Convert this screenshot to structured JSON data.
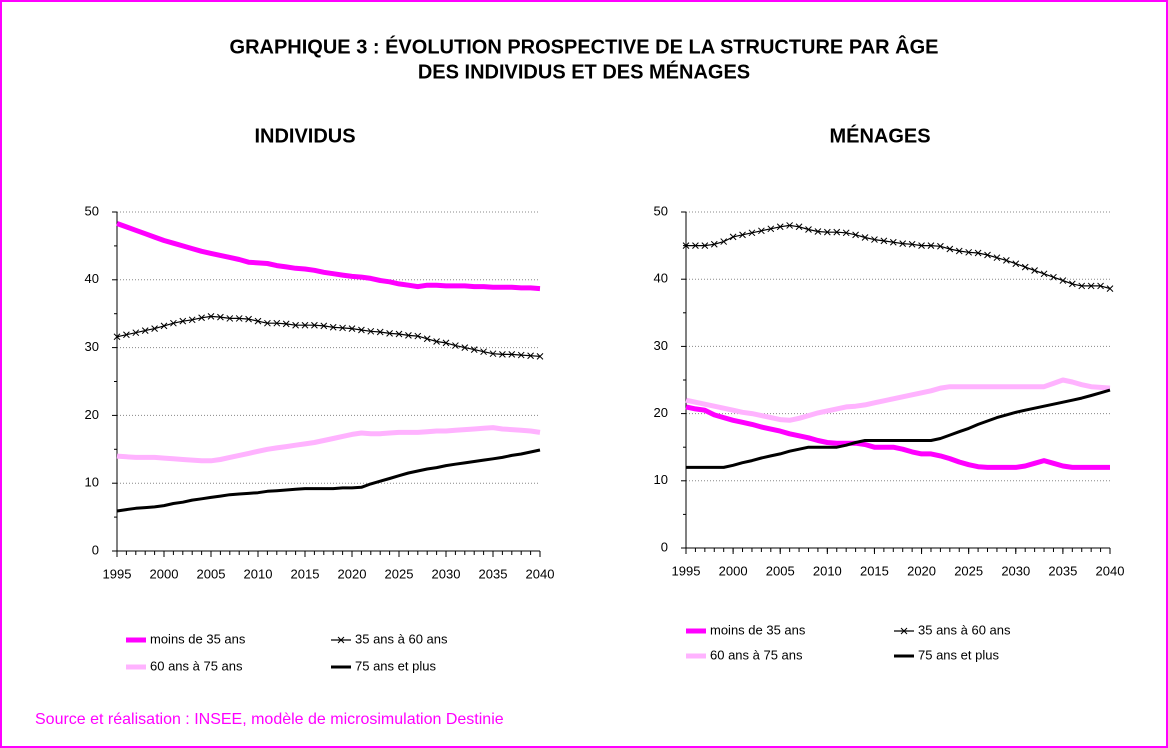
{
  "title": [
    "GRAPHIQUE 3 : ÉVOLUTION PROSPECTIVE DE LA STRUCTURE PAR ÂGE",
    "DES INDIVIDUS ET DES MÉNAGES"
  ],
  "source": "Source et réalisation : INSEE, modèle de microsimulation Destinie",
  "chart_data": [
    {
      "type": "line",
      "title": "INDIVIDUS",
      "x": [
        1995,
        1996,
        1997,
        1998,
        1999,
        2000,
        2001,
        2002,
        2003,
        2004,
        2005,
        2006,
        2007,
        2008,
        2009,
        2010,
        2011,
        2012,
        2013,
        2014,
        2015,
        2016,
        2017,
        2018,
        2019,
        2020,
        2021,
        2022,
        2023,
        2024,
        2025,
        2026,
        2027,
        2028,
        2029,
        2030,
        2031,
        2032,
        2033,
        2034,
        2035,
        2036,
        2037,
        2038,
        2039,
        2040
      ],
      "xlim": [
        1995,
        2040
      ],
      "xticks": [
        1995,
        2000,
        2005,
        2010,
        2015,
        2020,
        2025,
        2030,
        2035,
        2040
      ],
      "ylim": [
        0,
        50
      ],
      "yticks": [
        0,
        10,
        20,
        30,
        40,
        50
      ],
      "grid": true,
      "legend": "bottom",
      "series": [
        {
          "name": "moins de 35 ans",
          "color": "#ff00ff",
          "values": [
            48.3,
            47.8,
            47.3,
            46.8,
            46.3,
            45.8,
            45.4,
            45.0,
            44.6,
            44.2,
            43.9,
            43.6,
            43.3,
            43.0,
            42.6,
            42.5,
            42.4,
            42.1,
            41.9,
            41.7,
            41.6,
            41.4,
            41.1,
            40.9,
            40.7,
            40.5,
            40.4,
            40.2,
            39.9,
            39.7,
            39.4,
            39.2,
            39.0,
            39.2,
            39.2,
            39.1,
            39.1,
            39.1,
            39.0,
            39.0,
            38.9,
            38.9,
            38.9,
            38.8,
            38.8,
            38.7
          ]
        },
        {
          "name": "35 ans à 60 ans",
          "color": "#000000",
          "marker": "x",
          "values": [
            31.6,
            31.9,
            32.2,
            32.5,
            32.8,
            33.2,
            33.6,
            33.9,
            34.1,
            34.4,
            34.6,
            34.5,
            34.3,
            34.3,
            34.2,
            33.9,
            33.6,
            33.6,
            33.5,
            33.3,
            33.3,
            33.3,
            33.2,
            33.0,
            32.9,
            32.8,
            32.6,
            32.4,
            32.3,
            32.1,
            32.0,
            31.8,
            31.7,
            31.3,
            30.9,
            30.7,
            30.3,
            30.0,
            29.7,
            29.4,
            29.1,
            29.0,
            29.0,
            28.9,
            28.8,
            28.7
          ]
        },
        {
          "name": "60 ans à 75 ans",
          "color": "#ffb3ff",
          "values": [
            14.0,
            13.9,
            13.8,
            13.8,
            13.8,
            13.7,
            13.6,
            13.5,
            13.4,
            13.3,
            13.3,
            13.5,
            13.8,
            14.1,
            14.4,
            14.7,
            15.0,
            15.2,
            15.4,
            15.6,
            15.8,
            16.0,
            16.3,
            16.6,
            16.9,
            17.2,
            17.4,
            17.3,
            17.3,
            17.4,
            17.5,
            17.5,
            17.5,
            17.6,
            17.7,
            17.7,
            17.8,
            17.9,
            18.0,
            18.1,
            18.2,
            18.0,
            17.9,
            17.8,
            17.7,
            17.5
          ]
        },
        {
          "name": "75 ans et plus",
          "color": "#000000",
          "values": [
            5.9,
            6.1,
            6.3,
            6.4,
            6.5,
            6.7,
            7.0,
            7.2,
            7.5,
            7.7,
            7.9,
            8.1,
            8.3,
            8.4,
            8.5,
            8.6,
            8.8,
            8.9,
            9.0,
            9.1,
            9.2,
            9.2,
            9.2,
            9.2,
            9.3,
            9.3,
            9.4,
            9.9,
            10.3,
            10.7,
            11.1,
            11.5,
            11.8,
            12.1,
            12.3,
            12.6,
            12.8,
            13.0,
            13.2,
            13.4,
            13.6,
            13.8,
            14.1,
            14.3,
            14.6,
            14.9
          ]
        }
      ]
    },
    {
      "type": "line",
      "title": "MÉNAGES",
      "x": [
        1995,
        1996,
        1997,
        1998,
        1999,
        2000,
        2001,
        2002,
        2003,
        2004,
        2005,
        2006,
        2007,
        2008,
        2009,
        2010,
        2011,
        2012,
        2013,
        2014,
        2015,
        2016,
        2017,
        2018,
        2019,
        2020,
        2021,
        2022,
        2023,
        2024,
        2025,
        2026,
        2027,
        2028,
        2029,
        2030,
        2031,
        2032,
        2033,
        2034,
        2035,
        2036,
        2037,
        2038,
        2039,
        2040
      ],
      "xlim": [
        1995,
        2040
      ],
      "xticks": [
        1995,
        2000,
        2005,
        2010,
        2015,
        2020,
        2025,
        2030,
        2035,
        2040
      ],
      "ylim": [
        0,
        50
      ],
      "yticks": [
        0,
        10,
        20,
        30,
        40,
        50
      ],
      "grid": true,
      "legend": "bottom",
      "series": [
        {
          "name": "moins de 35 ans",
          "color": "#ff00ff",
          "values": [
            21,
            20.7,
            20.5,
            19.8,
            19.4,
            19.0,
            18.7,
            18.4,
            18.0,
            17.7,
            17.4,
            17.0,
            16.7,
            16.4,
            16.0,
            15.7,
            15.6,
            15.6,
            15.6,
            15.4,
            15.0,
            15.0,
            15.0,
            14.7,
            14.3,
            14.0,
            14.0,
            13.7,
            13.3,
            12.8,
            12.4,
            12.1,
            12.0,
            12.0,
            12.0,
            12.0,
            12.2,
            12.6,
            13.0,
            12.6,
            12.2,
            12.0,
            12.0,
            12.0,
            12.0,
            12.0
          ]
        },
        {
          "name": "35 ans à 60 ans",
          "color": "#000000",
          "marker": "x",
          "values": [
            45,
            45,
            45,
            45.2,
            45.6,
            46.3,
            46.6,
            46.9,
            47.2,
            47.5,
            47.8,
            48,
            47.8,
            47.4,
            47.1,
            47,
            47,
            46.9,
            46.6,
            46.2,
            45.9,
            45.7,
            45.5,
            45.3,
            45.2,
            45.0,
            45.0,
            44.9,
            44.5,
            44.2,
            44.0,
            43.9,
            43.6,
            43.2,
            42.8,
            42.3,
            41.8,
            41.3,
            40.8,
            40.3,
            39.8,
            39.3,
            39.0,
            39.0,
            39.0,
            38.6
          ]
        },
        {
          "name": "60 ans à 75 ans",
          "color": "#ffb3ff",
          "values": [
            22,
            21.7,
            21.4,
            21.1,
            20.8,
            20.5,
            20.2,
            20.0,
            19.7,
            19.4,
            19.1,
            19.0,
            19.3,
            19.7,
            20.1,
            20.4,
            20.7,
            21.0,
            21.1,
            21.3,
            21.6,
            21.9,
            22.2,
            22.5,
            22.8,
            23.1,
            23.4,
            23.8,
            24.0,
            24.0,
            24.0,
            24.0,
            24.0,
            24.0,
            24.0,
            24.0,
            24.0,
            24.0,
            24.0,
            24.5,
            25.0,
            24.7,
            24.3,
            24.0,
            23.9,
            23.8
          ]
        },
        {
          "name": "75 ans et plus",
          "color": "#000000",
          "values": [
            12,
            12,
            12,
            12,
            12,
            12.3,
            12.7,
            13.0,
            13.4,
            13.7,
            14.0,
            14.4,
            14.7,
            15.0,
            15.0,
            15.0,
            15.0,
            15.3,
            15.7,
            16.0,
            16.0,
            16.0,
            16.0,
            16.0,
            16.0,
            16.0,
            16.0,
            16.3,
            16.8,
            17.3,
            17.8,
            18.4,
            18.9,
            19.4,
            19.8,
            20.2,
            20.5,
            20.8,
            21.1,
            21.4,
            21.7,
            22.0,
            22.3,
            22.7,
            23.1,
            23.5
          ]
        }
      ]
    }
  ]
}
